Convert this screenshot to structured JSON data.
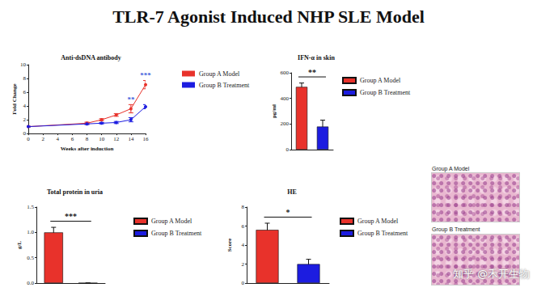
{
  "title": "TLR-7 Agonist Induced NHP SLE Model",
  "chart_data": [
    {
      "type": "line",
      "title": "Anti-dsDNA antibody",
      "x_label": "Weeks after induction",
      "y_label": "Fold Change",
      "x": [
        0,
        8,
        10,
        12,
        14,
        16
      ],
      "series": [
        {
          "name": "Group A Model",
          "color": "#e8322b",
          "marker": "circle",
          "values": [
            1.0,
            1.5,
            2.0,
            2.7,
            3.6,
            7.1
          ],
          "errors": [
            0.05,
            0.15,
            0.15,
            0.2,
            0.6,
            0.6
          ]
        },
        {
          "name": "Group B Treatment",
          "color": "#1c1ce0",
          "marker": "circle",
          "values": [
            1.0,
            1.4,
            1.5,
            1.6,
            2.0,
            3.9
          ],
          "errors": [
            0.05,
            0.1,
            0.1,
            0.15,
            0.3,
            0.3
          ]
        }
      ],
      "xlim": [
        0,
        16
      ],
      "xticks": [
        0,
        2,
        4,
        6,
        8,
        10,
        12,
        14,
        16
      ],
      "ylim": [
        0,
        10
      ],
      "yticks": [
        0,
        2,
        4,
        6,
        8,
        10
      ],
      "annotations": [
        {
          "x": 14,
          "text": "**",
          "color": "#3b5bdb"
        },
        {
          "x": 16,
          "text": "***",
          "color": "#3b5bdb"
        }
      ],
      "legend": "right",
      "grid": false
    },
    {
      "type": "bar",
      "title": "IFN-α in skin",
      "y_label": "pg/ml",
      "categories": [
        null
      ],
      "series": [
        {
          "name": "Group A Model",
          "color": "#e8322b",
          "values": [
            490
          ],
          "errors": [
            30
          ]
        },
        {
          "name": "Group B Treatment",
          "color": "#1c1ce0",
          "values": [
            180
          ],
          "errors": [
            50
          ]
        }
      ],
      "ylim": [
        0,
        600
      ],
      "yticks": [
        0,
        200,
        400,
        600
      ],
      "annotations": [
        {
          "text": "**"
        }
      ],
      "tick_labels": "y",
      "legend": "right",
      "grid": false
    },
    {
      "type": "bar",
      "title": "Total protein in uria",
      "y_label": "g/L",
      "categories": [
        null
      ],
      "series": [
        {
          "name": "Group A Model",
          "color": "#e8322b",
          "values": [
            1.0
          ],
          "errors": [
            0.1
          ]
        },
        {
          "name": "Group B Treatment",
          "color": "#1c1ce0",
          "values": [
            0
          ],
          "errors": [
            0
          ]
        }
      ],
      "ylim": [
        0,
        1.5
      ],
      "yticks": [
        {
          "value": 0,
          "label": "0.0"
        },
        {
          "value": 0.5,
          "label": "0.5"
        },
        {
          "value": 1,
          "label": "1.0"
        },
        {
          "value": 1.5,
          "label": "1.5"
        }
      ],
      "annotations": [
        {
          "text": "***"
        }
      ],
      "tick_labels": "y",
      "legend": "right",
      "grid": false
    },
    {
      "type": "bar",
      "title": "HE",
      "y_label": "Score",
      "categories": [
        null
      ],
      "series": [
        {
          "name": "Group A Model",
          "color": "#e8322b",
          "values": [
            5.6
          ],
          "errors": [
            0.7
          ]
        },
        {
          "name": "Group B Treatment",
          "color": "#1c1ce0",
          "values": [
            2.0
          ],
          "errors": [
            0.5
          ]
        }
      ],
      "ylim": [
        0,
        8
      ],
      "yticks": [
        0,
        2,
        4,
        6,
        8
      ],
      "annotations": [
        {
          "text": "*"
        }
      ],
      "tick_labels": "y",
      "legend": "right",
      "grid": false
    }
  ],
  "histology": {
    "labels": [
      "Group A Model",
      "Group B Treatment"
    ]
  },
  "watermark": "知乎 @禾开生物"
}
